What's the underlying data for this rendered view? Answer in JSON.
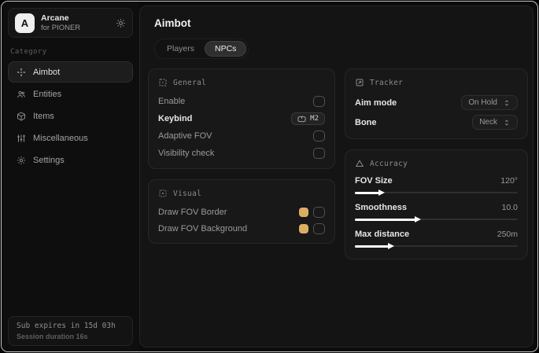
{
  "sidebar": {
    "brand": {
      "logo_letter": "A",
      "name": "Arcane",
      "subtitle": "for PIONER"
    },
    "category_label": "Category",
    "items": [
      {
        "label": "Aimbot",
        "active": true
      },
      {
        "label": "Entities",
        "active": false
      },
      {
        "label": "Items",
        "active": false
      },
      {
        "label": "Miscellaneous",
        "active": false
      },
      {
        "label": "Settings",
        "active": false
      }
    ],
    "footer": {
      "line1": "Sub expires in 15d 03h",
      "line2": "Session duration 16s"
    }
  },
  "main": {
    "title": "Aimbot",
    "tabs": [
      {
        "label": "Players",
        "active": false
      },
      {
        "label": "NPCs",
        "active": true
      }
    ],
    "general": {
      "title": "General",
      "rows": [
        {
          "label": "Enable",
          "control": "checkbox",
          "checked": false
        },
        {
          "label": "Keybind",
          "control": "keybind",
          "value": "M2"
        },
        {
          "label": "Adaptive FOV",
          "control": "checkbox",
          "checked": false
        },
        {
          "label": "Visibility check",
          "control": "checkbox",
          "checked": false
        }
      ]
    },
    "visual": {
      "title": "Visual",
      "rows": [
        {
          "label": "Draw FOV Border",
          "color": "#dcae63",
          "checked": false
        },
        {
          "label": "Draw FOV Background",
          "color": "#dcae63",
          "checked": false
        }
      ]
    },
    "tracker": {
      "title": "Tracker",
      "rows": [
        {
          "label": "Aim mode",
          "value": "On Hold"
        },
        {
          "label": "Bone",
          "value": "Neck"
        }
      ]
    },
    "accuracy": {
      "title": "Accuracy",
      "sliders": [
        {
          "label": "FOV Size",
          "value": "120°",
          "percent": 15
        },
        {
          "label": "Smoothness",
          "value": "10.0",
          "percent": 37
        },
        {
          "label": "Max distance",
          "value": "250m",
          "percent": 21
        }
      ]
    }
  },
  "colors": {
    "fov_swatch": "#dcae63",
    "slider_fill": "#ffffff",
    "card_background": "#181818",
    "window_background": "#0b0b0b"
  }
}
